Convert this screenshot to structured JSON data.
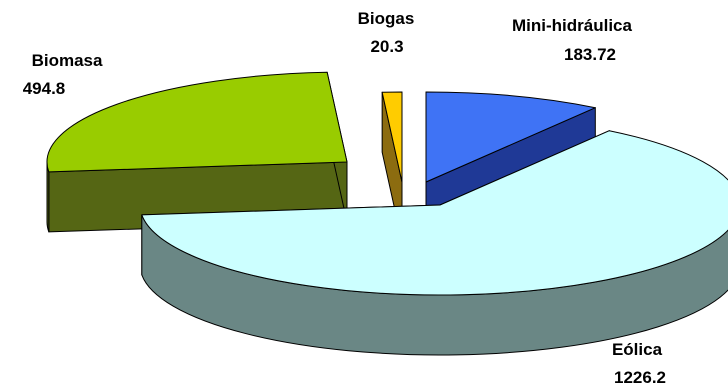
{
  "chart_data": {
    "type": "pie",
    "variant": "3d-exploded",
    "title": "",
    "slices": [
      {
        "label": "Mini-hidráulica",
        "value": 183.72,
        "value_text": "183.72",
        "color_top": "#3f73f5",
        "color_side": "#1f3996"
      },
      {
        "label": "Eólica",
        "value": 1226.2,
        "value_text": "1226.2",
        "color_top": "#ccffff",
        "color_side": "#6a8785"
      },
      {
        "label": "Biomasa",
        "value": 494.8,
        "value_text": "494.8",
        "color_top": "#99cc00",
        "color_side": "#556614"
      },
      {
        "label": "Biogas",
        "value": 20.3,
        "value_text": "20.3",
        "color_top": "#ffcc00",
        "color_side": "#8c6c10"
      }
    ],
    "legend": "none"
  }
}
